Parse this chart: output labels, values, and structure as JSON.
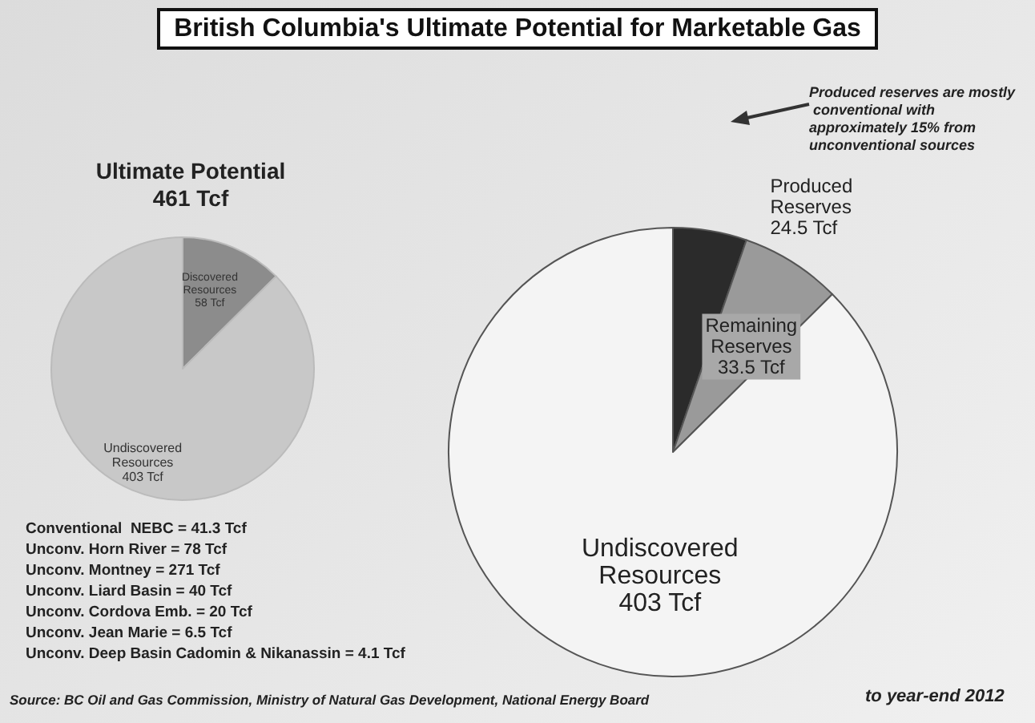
{
  "chart_data": [
    {
      "type": "pie",
      "title": "British Columbia's Ultimate Potential for Marketable Gas",
      "categories": [
        "Produced Reserves",
        "Remaining Reserves",
        "Undiscovered Resources"
      ],
      "values": [
        24.5,
        33.5,
        403
      ],
      "colors": [
        "#2b2b2b",
        "#9a9a9a",
        "#f4f4f4"
      ],
      "value_labels": [
        "24.5 Tcf",
        "33.5 Tcf",
        "403 Tcf"
      ],
      "legend": false,
      "annotations": [
        "Produced reserves are mostly conventional with approximately 15% from unconventional sources",
        "Source: BC Oil and Gas Commission, Ministry of Natural Gas Development, National Energy Board",
        "to year-end 2012"
      ]
    },
    {
      "type": "pie",
      "title": "Ultimate Potential\n461 Tcf",
      "categories": [
        "Discovered Resources",
        "Undiscovered Resources"
      ],
      "values": [
        58,
        403
      ],
      "colors": [
        "#8c8c8c",
        "#c8c8c8"
      ],
      "value_labels": [
        "58 Tcf",
        "403 Tcf"
      ],
      "legend": false,
      "annotations": [
        "Conventional  NEBC = 41.3 Tcf",
        "Unconv. Horn River = 78 Tcf",
        "Unconv. Montney = 271 Tcf",
        "Unconv. Liard Basin = 40 Tcf",
        "Unconv. Cordova Emb. = 20 Tcf",
        "Unconv. Jean Marie = 6.5 Tcf",
        "Unconv. Deep Basin Cadomin & Nikanassin = 4.1 Tcf"
      ]
    }
  ]
}
